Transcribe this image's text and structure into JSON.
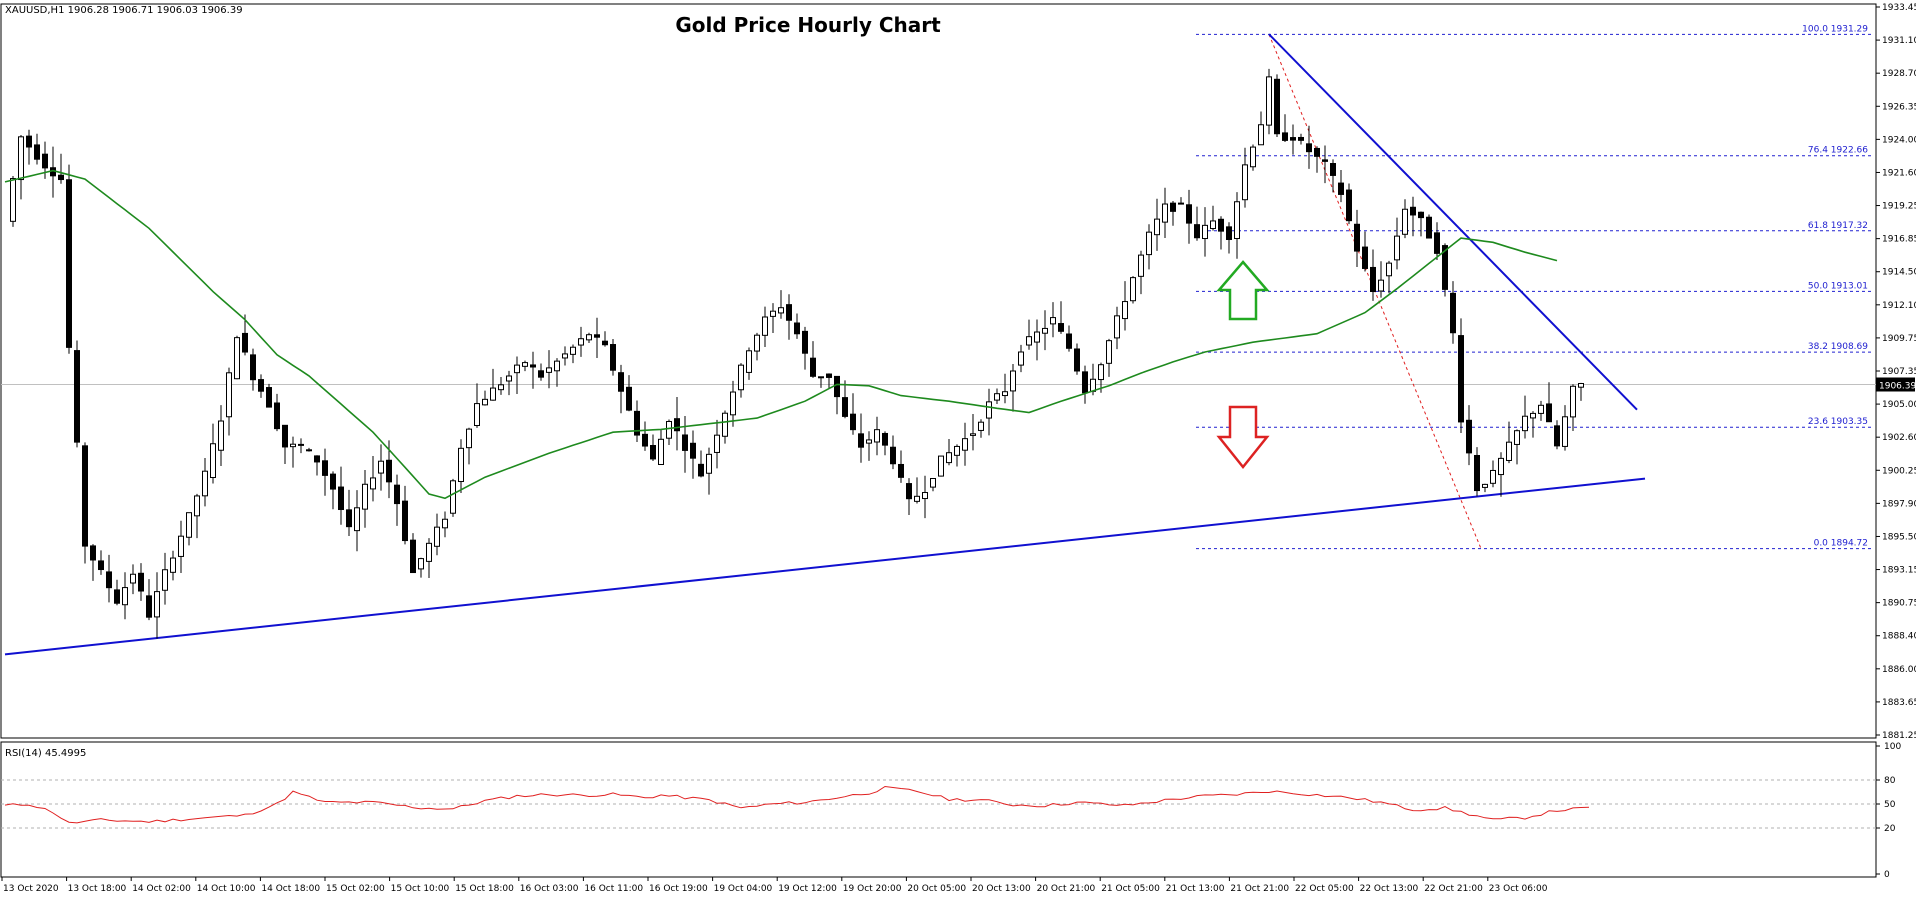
{
  "header": {
    "symbol_info": "XAUUSD,H1  1906.28 1906.71 1906.03 1906.39",
    "title": "Gold Price Hourly Chart"
  },
  "chart_data": {
    "type": "candlestick",
    "title": "Gold Price Hourly Chart",
    "symbol": "XAUUSD,H1",
    "ohlc_readout": "1906.28 1906.71 1906.03 1906.39",
    "current_price": "1906.39",
    "y_ticks": [
      "1933.45",
      "1931.10",
      "1928.70",
      "1926.35",
      "1924.00",
      "1921.60",
      "1919.25",
      "1916.85",
      "1914.50",
      "1912.10",
      "1909.75",
      "1907.35",
      "1905.00",
      "1902.60",
      "1900.25",
      "1897.90",
      "1895.50",
      "1893.15",
      "1890.75",
      "1888.40",
      "1886.00",
      "1883.65",
      "1881.25"
    ],
    "ylim": [
      1881.25,
      1933.45
    ],
    "x_ticks": [
      "13 Oct 2020",
      "13 Oct 18:00",
      "14 Oct 02:00",
      "14 Oct 10:00",
      "14 Oct 18:00",
      "15 Oct 02:00",
      "15 Oct 10:00",
      "15 Oct 18:00",
      "16 Oct 03:00",
      "16 Oct 11:00",
      "16 Oct 19:00",
      "19 Oct 04:00",
      "19 Oct 12:00",
      "19 Oct 20:00",
      "20 Oct 05:00",
      "20 Oct 13:00",
      "20 Oct 21:00",
      "21 Oct 05:00",
      "21 Oct 13:00",
      "21 Oct 21:00",
      "22 Oct 05:00",
      "22 Oct 13:00",
      "22 Oct 21:00",
      "23 Oct 06:00"
    ],
    "price_anchors": [
      [
        0,
        1918
      ],
      [
        2,
        1924
      ],
      [
        5,
        1922
      ],
      [
        7,
        1921
      ],
      [
        8,
        1909
      ],
      [
        10,
        1895
      ],
      [
        12,
        1893
      ],
      [
        14,
        1891
      ],
      [
        16,
        1893
      ],
      [
        18,
        1890
      ],
      [
        20,
        1893
      ],
      [
        23,
        1897
      ],
      [
        25,
        1900
      ],
      [
        27,
        1904
      ],
      [
        29,
        1910
      ],
      [
        31,
        1907
      ],
      [
        33,
        1905
      ],
      [
        35,
        1902
      ],
      [
        37,
        1902
      ],
      [
        39,
        1901
      ],
      [
        41,
        1899
      ],
      [
        43,
        1896
      ],
      [
        45,
        1899
      ],
      [
        47,
        1901
      ],
      [
        49,
        1898
      ],
      [
        51,
        1893
      ],
      [
        53,
        1895
      ],
      [
        55,
        1897
      ],
      [
        57,
        1902
      ],
      [
        59,
        1905
      ],
      [
        61,
        1906
      ],
      [
        63,
        1907
      ],
      [
        65,
        1908
      ],
      [
        67,
        1907
      ],
      [
        69,
        1908
      ],
      [
        71,
        1909
      ],
      [
        73,
        1910
      ],
      [
        75,
        1909
      ],
      [
        77,
        1906
      ],
      [
        79,
        1903
      ],
      [
        81,
        1901
      ],
      [
        83,
        1904
      ],
      [
        85,
        1902
      ],
      [
        87,
        1900
      ],
      [
        89,
        1903
      ],
      [
        91,
        1906
      ],
      [
        93,
        1909
      ],
      [
        95,
        1911
      ],
      [
        97,
        1912
      ],
      [
        99,
        1910
      ],
      [
        101,
        1907
      ],
      [
        103,
        1907
      ],
      [
        105,
        1904
      ],
      [
        107,
        1902
      ],
      [
        109,
        1903
      ],
      [
        111,
        1901
      ],
      [
        113,
        1898
      ],
      [
        115,
        1899
      ],
      [
        117,
        1901
      ],
      [
        119,
        1902
      ],
      [
        121,
        1903
      ],
      [
        123,
        1905
      ],
      [
        125,
        1906
      ],
      [
        127,
        1909
      ],
      [
        129,
        1910
      ],
      [
        131,
        1911
      ],
      [
        133,
        1909
      ],
      [
        135,
        1906
      ],
      [
        137,
        1908
      ],
      [
        139,
        1911
      ],
      [
        141,
        1914
      ],
      [
        143,
        1917
      ],
      [
        145,
        1919
      ],
      [
        147,
        1919
      ],
      [
        149,
        1917
      ],
      [
        151,
        1918
      ],
      [
        153,
        1917
      ],
      [
        155,
        1922
      ],
      [
        157,
        1925
      ],
      [
        158,
        1928
      ],
      [
        159,
        1924
      ],
      [
        161,
        1924
      ],
      [
        163,
        1923
      ],
      [
        165,
        1922
      ],
      [
        167,
        1920
      ],
      [
        169,
        1916
      ],
      [
        171,
        1913
      ],
      [
        173,
        1915
      ],
      [
        175,
        1919
      ],
      [
        177,
        1918
      ],
      [
        179,
        1916
      ],
      [
        181,
        1910
      ],
      [
        182,
        1904
      ],
      [
        184,
        1899
      ],
      [
        186,
        1900
      ],
      [
        188,
        1902
      ],
      [
        190,
        1904
      ],
      [
        192,
        1905
      ],
      [
        194,
        1902
      ],
      [
        196,
        1906
      ],
      [
        197,
        1906.4
      ]
    ],
    "ma_anchors": [
      [
        0,
        1920.8
      ],
      [
        6,
        1921.6
      ],
      [
        10,
        1921
      ],
      [
        18,
        1917.5
      ],
      [
        26,
        1913
      ],
      [
        30,
        1911
      ],
      [
        34,
        1908.5
      ],
      [
        38,
        1907
      ],
      [
        42,
        1905
      ],
      [
        46,
        1903
      ],
      [
        50,
        1900.5
      ],
      [
        53,
        1898.6
      ],
      [
        55,
        1898.3
      ],
      [
        60,
        1899.8
      ],
      [
        68,
        1901.5
      ],
      [
        76,
        1903
      ],
      [
        82,
        1903.2
      ],
      [
        88,
        1903.6
      ],
      [
        94,
        1904
      ],
      [
        100,
        1905.2
      ],
      [
        104,
        1906.4
      ],
      [
        108,
        1906.3
      ],
      [
        112,
        1905.6
      ],
      [
        118,
        1905.2
      ],
      [
        124,
        1904.7
      ],
      [
        128,
        1904.4
      ],
      [
        132,
        1905.2
      ],
      [
        138,
        1906.3
      ],
      [
        142,
        1907.2
      ],
      [
        146,
        1908
      ],
      [
        150,
        1908.7
      ],
      [
        156,
        1909.4
      ],
      [
        164,
        1910
      ],
      [
        170,
        1911.5
      ],
      [
        174,
        1913.2
      ],
      [
        178,
        1915
      ],
      [
        182,
        1916.8
      ],
      [
        186,
        1916.5
      ],
      [
        190,
        1915.8
      ],
      [
        194,
        1915.2
      ]
    ],
    "rsi_anchors": [
      [
        0,
        48
      ],
      [
        3,
        50
      ],
      [
        6,
        40
      ],
      [
        8,
        26
      ],
      [
        12,
        30
      ],
      [
        18,
        28
      ],
      [
        24,
        32
      ],
      [
        30,
        36
      ],
      [
        34,
        50
      ],
      [
        36,
        65
      ],
      [
        40,
        52
      ],
      [
        46,
        52
      ],
      [
        52,
        45
      ],
      [
        56,
        44
      ],
      [
        60,
        54
      ],
      [
        64,
        60
      ],
      [
        68,
        62
      ],
      [
        72,
        61
      ],
      [
        76,
        62
      ],
      [
        80,
        58
      ],
      [
        82,
        61
      ],
      [
        88,
        55
      ],
      [
        92,
        45
      ],
      [
        96,
        50
      ],
      [
        100,
        52
      ],
      [
        104,
        58
      ],
      [
        108,
        64
      ],
      [
        110,
        70
      ],
      [
        114,
        66
      ],
      [
        118,
        56
      ],
      [
        122,
        55
      ],
      [
        126,
        49
      ],
      [
        130,
        48
      ],
      [
        134,
        52
      ],
      [
        140,
        48
      ],
      [
        146,
        56
      ],
      [
        150,
        60
      ],
      [
        154,
        62
      ],
      [
        158,
        66
      ],
      [
        162,
        63
      ],
      [
        168,
        58
      ],
      [
        172,
        52
      ],
      [
        176,
        43
      ],
      [
        180,
        45
      ],
      [
        184,
        35
      ],
      [
        186,
        30
      ],
      [
        190,
        33
      ],
      [
        194,
        42
      ],
      [
        198,
        45
      ]
    ],
    "fibonacci": [
      {
        "level": "100.0",
        "price": 1931.29,
        "label": "100.0 1931.29"
      },
      {
        "level": "76.4",
        "price": 1922.66,
        "label": "76.4 1922.66"
      },
      {
        "level": "61.8",
        "price": 1917.32,
        "label": "61.8 1917.32"
      },
      {
        "level": "50.0",
        "price": 1913.01,
        "label": "50.0 1913.01"
      },
      {
        "level": "38.2",
        "price": 1908.69,
        "label": "38.2 1908.69"
      },
      {
        "level": "23.6",
        "price": 1903.35,
        "label": "23.6 1903.35"
      },
      {
        "level": "0.0",
        "price": 1894.72,
        "label": "0.0 1894.72"
      }
    ],
    "trendlines": [
      {
        "name": "support",
        "from": [
          0,
          1887.2
        ],
        "to": [
          205,
          1899.7
        ]
      },
      {
        "name": "resistance",
        "from": [
          158,
          1931.3
        ],
        "to": [
          204,
          1904.6
        ]
      }
    ],
    "arrows": [
      {
        "direction": "up",
        "color": "#22aa22"
      },
      {
        "direction": "down",
        "color": "#dd2222"
      }
    ],
    "rsi": {
      "label": "RSI(14) 45.4995",
      "ticks": [
        "100",
        "80",
        "50",
        "20",
        "0"
      ],
      "levels": [
        80,
        50,
        20
      ],
      "ylim": [
        0,
        100
      ]
    },
    "colors": {
      "candle": "#000000",
      "moving_average": "#1e8a1e",
      "trendline": "#1010d0",
      "fib_line": "#2020d0",
      "rsi_line": "#e02020",
      "up_arrow": "#22aa22",
      "down_arrow": "#dd2222"
    }
  }
}
